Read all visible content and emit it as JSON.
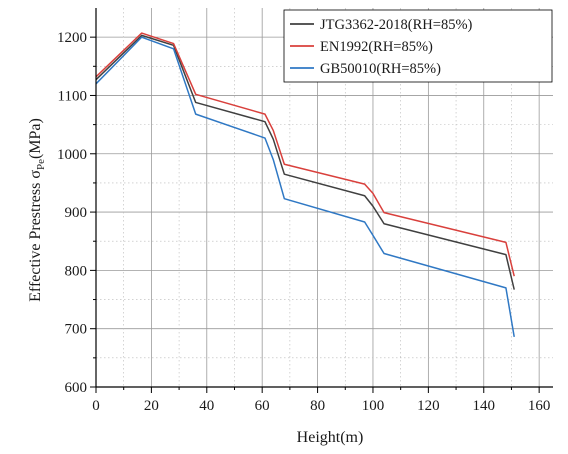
{
  "chart_data": {
    "type": "line",
    "xlabel": "Height(m)",
    "ylabel": {
      "main": "Effective Prestress σ",
      "sub": "Pe",
      "unit": "(MPa)"
    },
    "xlim": [
      0,
      165
    ],
    "ylim": [
      600,
      1250
    ],
    "xticks": [
      0,
      20,
      40,
      60,
      80,
      100,
      120,
      140,
      160
    ],
    "yticks": [
      600,
      700,
      800,
      900,
      1000,
      1100,
      1200
    ],
    "grid": true,
    "legend_position": "top-right",
    "series": [
      {
        "name": "JTG3362-2018(RH=85%)",
        "color": "#404040",
        "x": [
          0,
          16.5,
          28,
          36,
          61,
          64,
          68,
          97,
          100,
          104,
          148,
          151
        ],
        "y": [
          1127,
          1203,
          1186,
          1088,
          1055,
          1025,
          965,
          928,
          910,
          880,
          827,
          767
        ]
      },
      {
        "name": "EN1992(RH=85%)",
        "color": "#d9403c",
        "x": [
          0,
          16.5,
          28,
          36,
          61,
          64,
          68,
          97,
          100,
          104,
          148,
          151
        ],
        "y": [
          1132,
          1207,
          1189,
          1102,
          1068,
          1040,
          982,
          948,
          932,
          899,
          848,
          790
        ]
      },
      {
        "name": "GB50010(RH=85%)",
        "color": "#2f78c4",
        "x": [
          0,
          16.5,
          28,
          36,
          61,
          64,
          68,
          97,
          100,
          104,
          148,
          151
        ],
        "y": [
          1120,
          1200,
          1180,
          1068,
          1027,
          990,
          923,
          883,
          860,
          829,
          770,
          686
        ]
      }
    ]
  }
}
